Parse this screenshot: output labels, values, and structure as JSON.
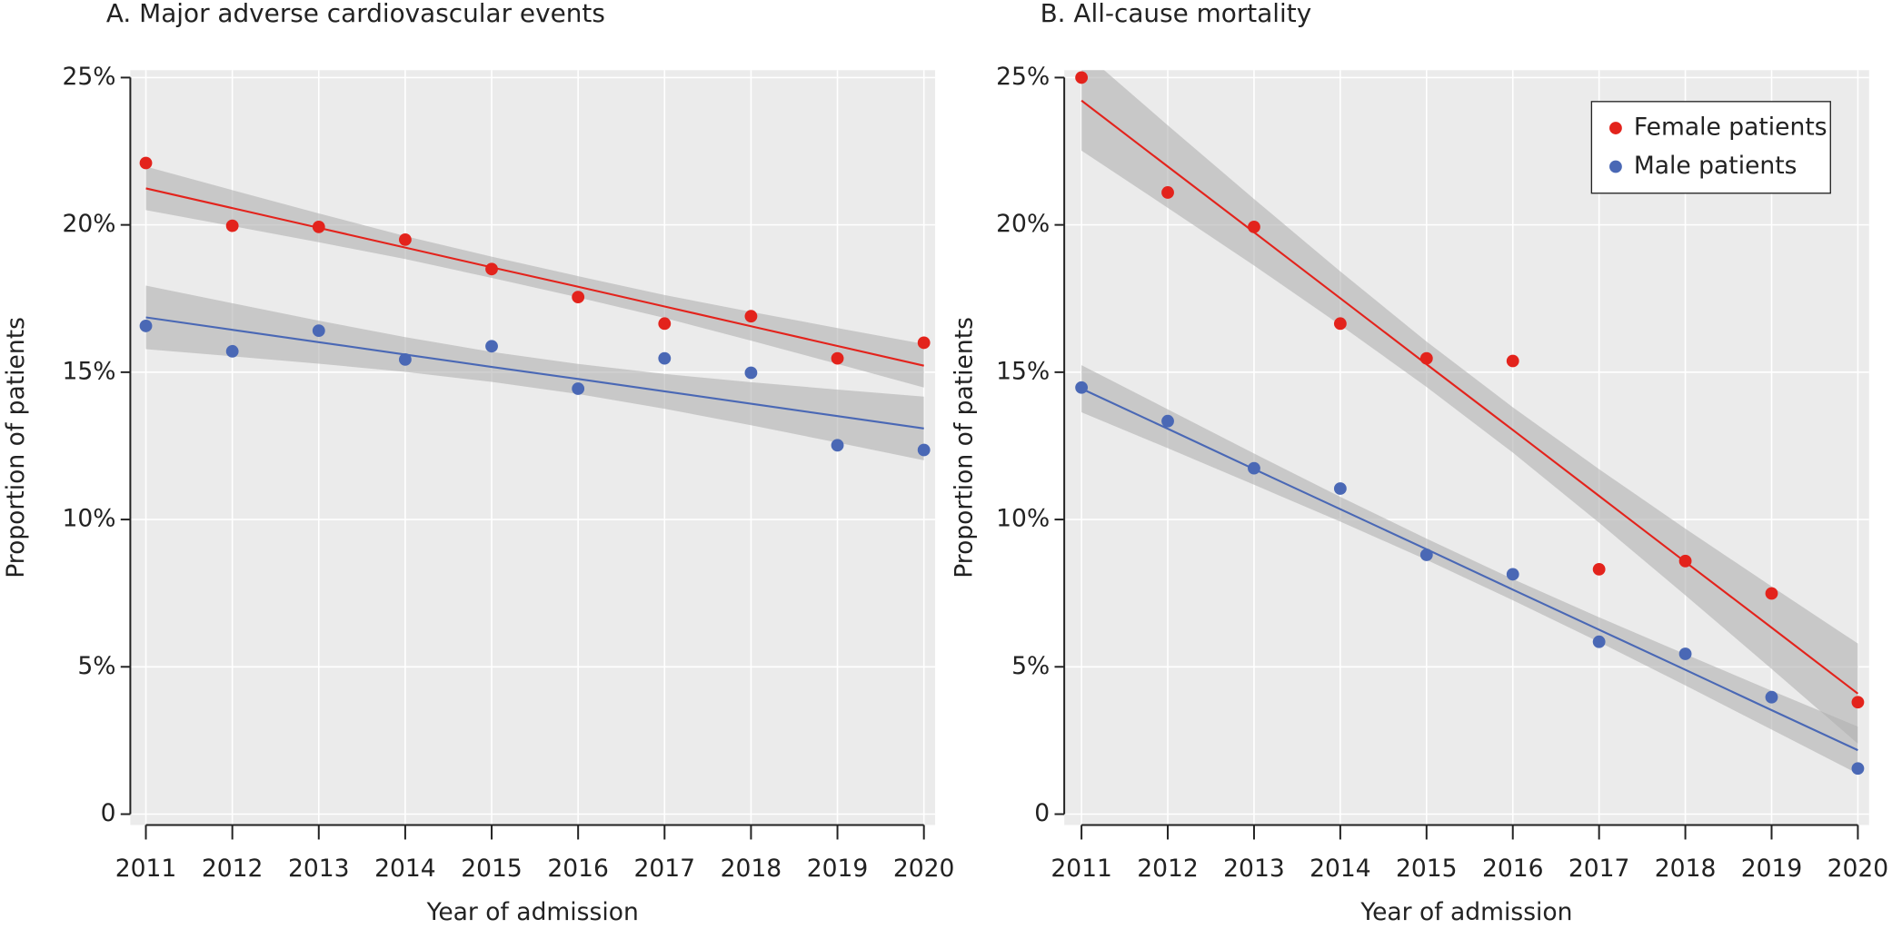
{
  "chart_data": [
    {
      "type": "scatter",
      "title": "A. Major adverse cardiovascular events",
      "xlabel": "Year of admission",
      "ylabel": "Proportion of patients",
      "x": [
        2011,
        2012,
        2013,
        2014,
        2015,
        2016,
        2017,
        2018,
        2019,
        2020
      ],
      "series": [
        {
          "color": "#e3231c",
          "values": [
            22.1,
            19.97,
            19.93,
            19.5,
            18.5,
            17.55,
            16.65,
            16.9,
            15.47,
            16.0
          ],
          "fit": [
            21.24,
            20.57,
            19.9,
            19.23,
            18.56,
            17.9,
            17.23,
            16.56,
            15.89,
            15.22
          ],
          "ci_lower": [
            20.5,
            19.96,
            19.41,
            18.84,
            18.2,
            17.54,
            16.84,
            16.07,
            15.28,
            14.48
          ],
          "ci_upper": [
            21.98,
            21.18,
            20.39,
            19.62,
            18.92,
            18.26,
            17.62,
            17.05,
            16.5,
            15.96
          ]
        },
        {
          "color": "#4a68b5",
          "values": [
            16.57,
            15.71,
            16.41,
            15.43,
            15.88,
            14.44,
            15.47,
            14.98,
            12.52,
            12.36
          ],
          "fit": [
            16.86,
            16.44,
            16.02,
            15.6,
            15.18,
            14.77,
            14.35,
            13.93,
            13.51,
            13.09
          ],
          "ci_lower": [
            15.78,
            15.54,
            15.29,
            15.01,
            14.67,
            14.26,
            13.76,
            13.2,
            12.61,
            12.01
          ],
          "ci_upper": [
            17.94,
            17.34,
            16.75,
            16.19,
            15.69,
            15.28,
            14.94,
            14.66,
            14.41,
            14.17
          ]
        }
      ],
      "xlim": [
        2010.82,
        2020.13
      ],
      "ylim": [
        -0.37,
        25.25
      ],
      "xticks": [
        2011,
        2012,
        2013,
        2014,
        2015,
        2016,
        2017,
        2018,
        2019,
        2020
      ],
      "yticks": [
        0,
        {
          "value": 5,
          "label": "5%"
        },
        {
          "value": 10,
          "label": "10%"
        },
        {
          "value": 15,
          "label": "15%"
        },
        {
          "value": 20,
          "label": "20%"
        },
        {
          "value": 25,
          "label": "25%"
        }
      ],
      "grid": true
    },
    {
      "type": "scatter",
      "title": "B. All-cause mortality",
      "xlabel": "Year of admission",
      "ylabel": "Proportion of patients",
      "x": [
        2011,
        2012,
        2013,
        2014,
        2015,
        2016,
        2017,
        2018,
        2019,
        2020
      ],
      "series": [
        {
          "name": "Female patients",
          "color": "#e3231c",
          "values": [
            25.0,
            21.1,
            19.93,
            16.65,
            15.47,
            15.38,
            8.31,
            8.59,
            7.49,
            3.8
          ],
          "fit": [
            24.22,
            21.98,
            19.75,
            17.51,
            15.27,
            13.04,
            10.8,
            8.56,
            6.33,
            4.09
          ],
          "ci_lower": [
            22.52,
            20.58,
            18.62,
            16.6,
            14.5,
            12.27,
            9.89,
            7.43,
            4.93,
            2.39
          ],
          "ci_upper": [
            25.92,
            23.38,
            20.88,
            18.42,
            16.04,
            13.81,
            11.71,
            9.69,
            7.73,
            5.79
          ]
        },
        {
          "name": "Male patients",
          "color": "#4a68b5",
          "values": [
            14.48,
            13.34,
            11.74,
            11.05,
            8.8,
            8.14,
            5.85,
            5.44,
            3.97,
            1.55
          ],
          "fit": [
            14.44,
            13.08,
            11.71,
            10.35,
            8.99,
            7.62,
            6.26,
            4.9,
            3.53,
            2.17
          ],
          "ci_lower": [
            13.64,
            12.42,
            11.18,
            9.93,
            8.63,
            7.26,
            5.84,
            4.37,
            2.87,
            1.37
          ],
          "ci_upper": [
            15.24,
            13.74,
            12.24,
            10.77,
            9.35,
            7.98,
            6.68,
            5.43,
            4.19,
            2.97
          ]
        }
      ],
      "xlim": [
        2010.8,
        2020.13
      ],
      "ylim": [
        -0.37,
        25.25
      ],
      "xticks": [
        2011,
        2012,
        2013,
        2014,
        2015,
        2016,
        2017,
        2018,
        2019,
        2020
      ],
      "yticks": [
        0,
        {
          "value": 5,
          "label": "5%"
        },
        {
          "value": 10,
          "label": "10%"
        },
        {
          "value": 15,
          "label": "15%"
        },
        {
          "value": 20,
          "label": "20%"
        },
        {
          "value": 25,
          "label": "25%"
        }
      ],
      "grid": true,
      "legend": "upper right"
    }
  ]
}
